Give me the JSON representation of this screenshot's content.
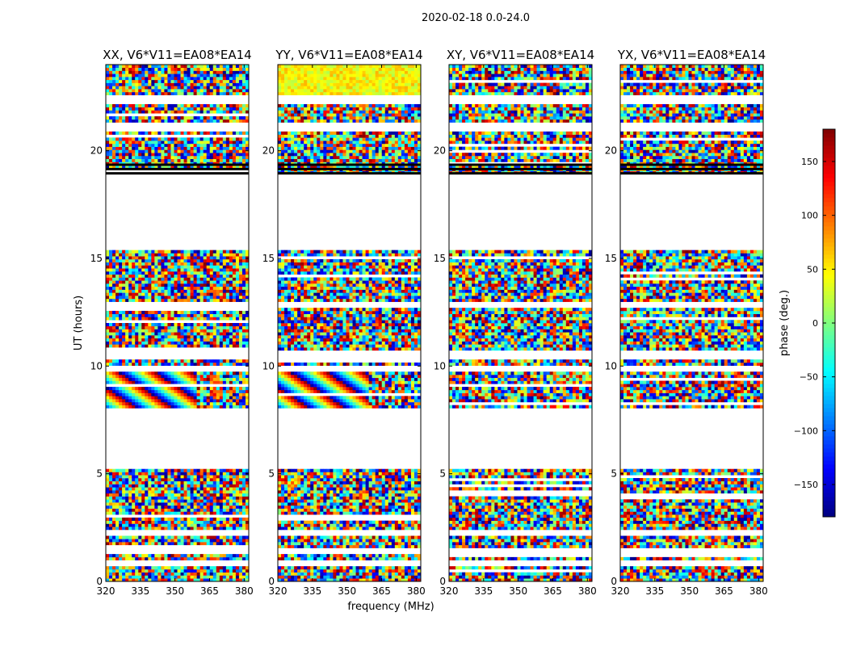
{
  "figure_title": "2020-02-18 0.0-24.0",
  "chart_data": {
    "type": "heatmap",
    "title": "2020-02-18 0.0-24.0",
    "xlabel": "frequency (MHz)",
    "ylabel": "UT (hours)",
    "xlim": [
      320,
      382
    ],
    "ylim": [
      0,
      24
    ],
    "x_ticks": [
      320,
      335,
      350,
      365,
      380
    ],
    "y_ticks": [
      0,
      5,
      10,
      15,
      20
    ],
    "panels": [
      {
        "title": "XX, V6*V11=EA08*EA14",
        "pol": "XX"
      },
      {
        "title": "YY, V6*V11=EA08*EA14",
        "pol": "YY"
      },
      {
        "title": "XY, V6*V11=EA08*EA14",
        "pol": "XY"
      },
      {
        "title": "YX, V6*V11=EA08*EA14",
        "pol": "YX"
      }
    ],
    "flagged_ut_ranges": [
      [
        0.72,
        0.9
      ],
      [
        1.4,
        1.55
      ],
      [
        2.15,
        2.3
      ],
      [
        5.25,
        8.0
      ],
      [
        9.75,
        9.95
      ],
      [
        10.4,
        10.65
      ],
      [
        12.75,
        12.9
      ],
      [
        15.5,
        18.8
      ],
      [
        20.9,
        21.3
      ],
      [
        22.25,
        22.5
      ]
    ],
    "colorbar": {
      "label": "phase (deg.)",
      "range": [
        -180,
        180
      ],
      "ticks": [
        -150,
        -100,
        -50,
        0,
        50,
        100,
        150
      ],
      "tick_labels": [
        "−150",
        "−100",
        "−50",
        "0",
        "50",
        "100",
        "150"
      ],
      "colormap": "jet",
      "colors": [
        "#00007f",
        "#0000ff",
        "#007fff",
        "#00ffff",
        "#7fff7f",
        "#ffff00",
        "#ff7f00",
        "#ff0000",
        "#7f0000"
      ]
    }
  }
}
